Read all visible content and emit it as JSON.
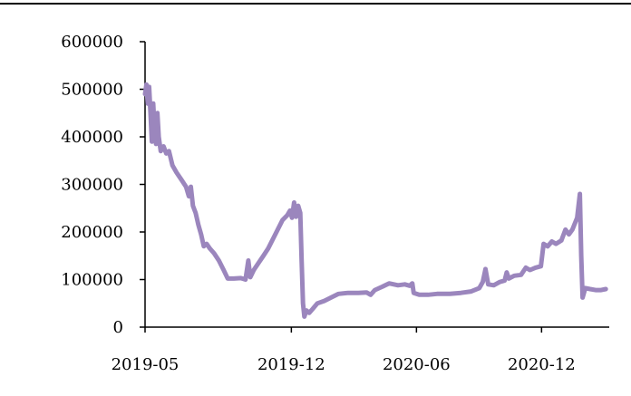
{
  "chart_data": {
    "type": "line",
    "title": "",
    "xlabel": "",
    "ylabel": "",
    "ylim": [
      0,
      600000
    ],
    "yticks": [
      "0",
      "100000",
      "200000",
      "300000",
      "400000",
      "500000",
      "600000"
    ],
    "xticks": [
      "2019-05",
      "2019-12",
      "2020-06",
      "2020-12"
    ],
    "xticks_dates": [
      "2019-05-01",
      "2019-12-01",
      "2020-06-01",
      "2020-12-01"
    ],
    "xlim": [
      "2019-05-01",
      "2021-03-10"
    ],
    "grid": false,
    "legend": "none",
    "series": [
      {
        "color": "#9b86bd",
        "points": [
          [
            "2019-05-01",
            490000
          ],
          [
            "2019-05-03",
            510000
          ],
          [
            "2019-05-05",
            470000
          ],
          [
            "2019-05-07",
            505000
          ],
          [
            "2019-05-09",
            450000
          ],
          [
            "2019-05-11",
            390000
          ],
          [
            "2019-05-13",
            470000
          ],
          [
            "2019-05-15",
            410000
          ],
          [
            "2019-05-17",
            385000
          ],
          [
            "2019-05-19",
            450000
          ],
          [
            "2019-05-21",
            400000
          ],
          [
            "2019-05-24",
            370000
          ],
          [
            "2019-05-28",
            380000
          ],
          [
            "2019-06-01",
            365000
          ],
          [
            "2019-06-05",
            370000
          ],
          [
            "2019-06-10",
            340000
          ],
          [
            "2019-06-16",
            325000
          ],
          [
            "2019-06-23",
            310000
          ],
          [
            "2019-06-30",
            295000
          ],
          [
            "2019-07-04",
            275000
          ],
          [
            "2019-07-07",
            295000
          ],
          [
            "2019-07-10",
            255000
          ],
          [
            "2019-07-14",
            240000
          ],
          [
            "2019-07-18",
            215000
          ],
          [
            "2019-07-22",
            195000
          ],
          [
            "2019-07-26",
            170000
          ],
          [
            "2019-07-30",
            175000
          ],
          [
            "2019-08-04",
            165000
          ],
          [
            "2019-08-10",
            155000
          ],
          [
            "2019-08-17",
            140000
          ],
          [
            "2019-08-24",
            120000
          ],
          [
            "2019-08-30",
            102000
          ],
          [
            "2019-09-08",
            102000
          ],
          [
            "2019-09-18",
            103000
          ],
          [
            "2019-09-25",
            100000
          ],
          [
            "2019-09-29",
            140000
          ],
          [
            "2019-10-02",
            105000
          ],
          [
            "2019-10-07",
            120000
          ],
          [
            "2019-10-14",
            135000
          ],
          [
            "2019-10-21",
            150000
          ],
          [
            "2019-10-28",
            165000
          ],
          [
            "2019-11-04",
            185000
          ],
          [
            "2019-11-11",
            205000
          ],
          [
            "2019-11-18",
            225000
          ],
          [
            "2019-11-25",
            235000
          ],
          [
            "2019-11-29",
            245000
          ],
          [
            "2019-12-02",
            230000
          ],
          [
            "2019-12-05",
            262000
          ],
          [
            "2019-12-08",
            232000
          ],
          [
            "2019-12-11",
            255000
          ],
          [
            "2019-12-14",
            240000
          ],
          [
            "2019-12-16",
            140000
          ],
          [
            "2019-12-18",
            50000
          ],
          [
            "2019-12-20",
            22000
          ],
          [
            "2019-12-23",
            35000
          ],
          [
            "2019-12-27",
            30000
          ],
          [
            "2020-01-01",
            38000
          ],
          [
            "2020-01-08",
            50000
          ],
          [
            "2020-01-18",
            55000
          ],
          [
            "2020-01-28",
            62000
          ],
          [
            "2020-02-08",
            70000
          ],
          [
            "2020-02-22",
            72000
          ],
          [
            "2020-03-08",
            72000
          ],
          [
            "2020-03-20",
            73000
          ],
          [
            "2020-03-26",
            68000
          ],
          [
            "2020-04-01",
            78000
          ],
          [
            "2020-04-12",
            85000
          ],
          [
            "2020-04-22",
            92000
          ],
          [
            "2020-05-05",
            88000
          ],
          [
            "2020-05-15",
            90000
          ],
          [
            "2020-05-22",
            87000
          ],
          [
            "2020-05-26",
            92000
          ],
          [
            "2020-05-28",
            72000
          ],
          [
            "2020-06-05",
            68000
          ],
          [
            "2020-06-18",
            68000
          ],
          [
            "2020-07-01",
            70000
          ],
          [
            "2020-07-20",
            70000
          ],
          [
            "2020-08-05",
            72000
          ],
          [
            "2020-08-20",
            75000
          ],
          [
            "2020-09-01",
            82000
          ],
          [
            "2020-09-06",
            95000
          ],
          [
            "2020-09-10",
            122000
          ],
          [
            "2020-09-14",
            90000
          ],
          [
            "2020-09-22",
            88000
          ],
          [
            "2020-10-01",
            95000
          ],
          [
            "2020-10-08",
            98000
          ],
          [
            "2020-10-11",
            115000
          ],
          [
            "2020-10-14",
            102000
          ],
          [
            "2020-10-22",
            108000
          ],
          [
            "2020-11-01",
            110000
          ],
          [
            "2020-11-08",
            125000
          ],
          [
            "2020-11-14",
            120000
          ],
          [
            "2020-11-22",
            125000
          ],
          [
            "2020-11-30",
            128000
          ],
          [
            "2020-12-04",
            175000
          ],
          [
            "2020-12-10",
            170000
          ],
          [
            "2020-12-16",
            180000
          ],
          [
            "2020-12-22",
            175000
          ],
          [
            "2020-12-30",
            182000
          ],
          [
            "2021-01-05",
            205000
          ],
          [
            "2021-01-10",
            195000
          ],
          [
            "2021-01-15",
            205000
          ],
          [
            "2021-01-22",
            230000
          ],
          [
            "2021-01-26",
            280000
          ],
          [
            "2021-01-28",
            150000
          ],
          [
            "2021-01-30",
            62000
          ],
          [
            "2021-02-03",
            82000
          ],
          [
            "2021-02-10",
            80000
          ],
          [
            "2021-02-18",
            78000
          ],
          [
            "2021-02-26",
            78000
          ],
          [
            "2021-03-05",
            80000
          ]
        ]
      }
    ]
  }
}
